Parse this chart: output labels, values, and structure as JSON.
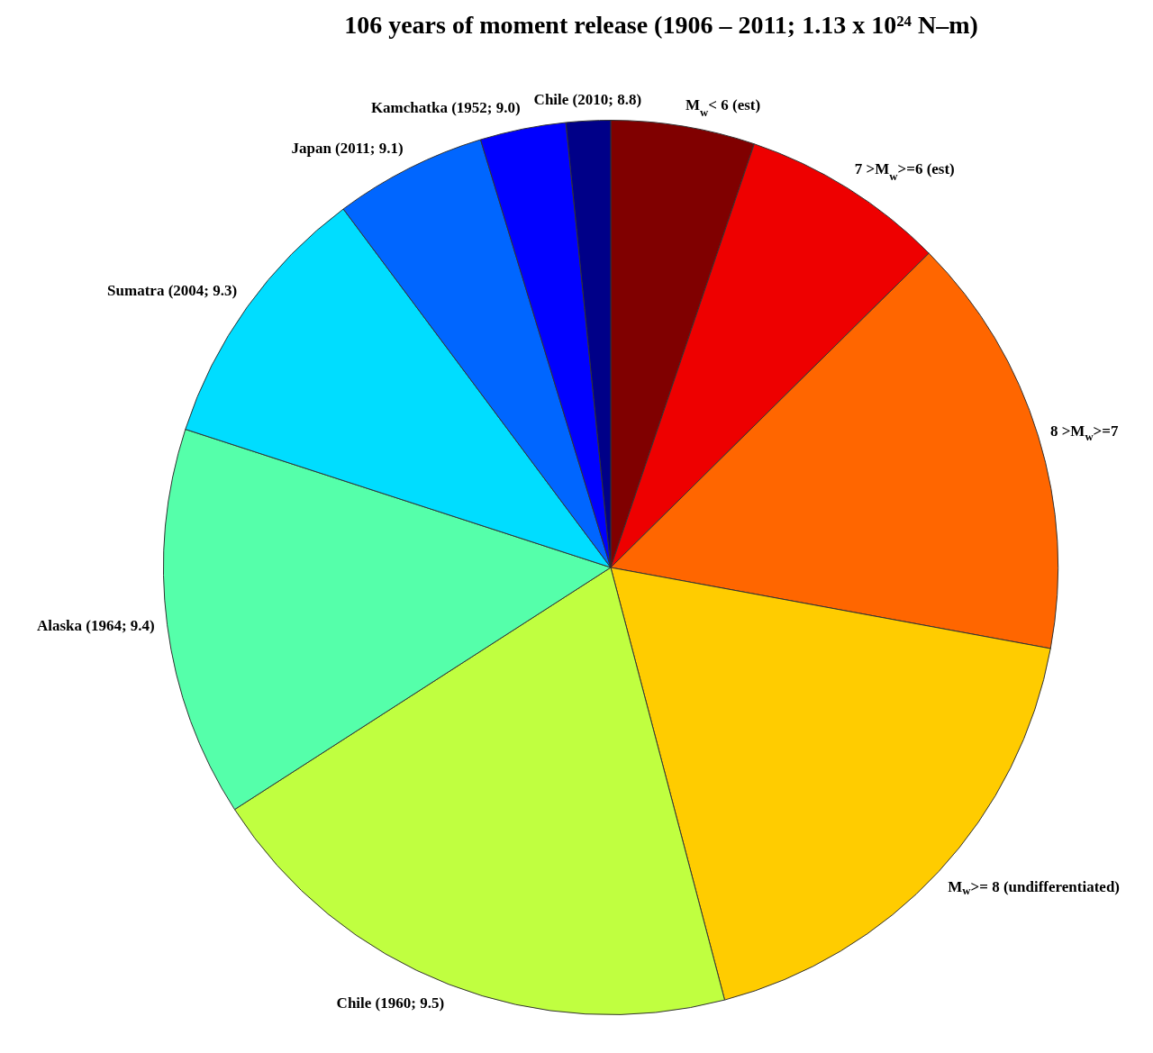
{
  "chart_data": {
    "type": "pie",
    "title": "106 years of moment release (1906 – 2011; 1.13 x 10²⁴ N–m)",
    "categories": [
      "M$_{w}$< 6 (est)",
      "7 >M$_{w}$>=6 (est)",
      "8 >M$_{w}$>=7",
      "M$_{w}$>= 8 (undifferentiated)",
      "Chile (1960; 9.5)",
      "Alaska (1964; 9.4)",
      "Sumatra (2004; 9.3)",
      "Japan (2011; 9.1)",
      "Kamchatka (1952; 9.0)",
      "Chile (2010; 8.8)"
    ],
    "values": [
      5.2,
      7.4,
      15.3,
      18.0,
      20.0,
      14.1,
      9.8,
      5.5,
      3.1,
      1.6
    ],
    "colors": [
      "#800000",
      "#ee0000",
      "#ff6600",
      "#ffcc00",
      "#c0ff40",
      "#55ffaa",
      "#00ddff",
      "#0066ff",
      "#0000ff",
      "#000088"
    ],
    "legend": false
  }
}
